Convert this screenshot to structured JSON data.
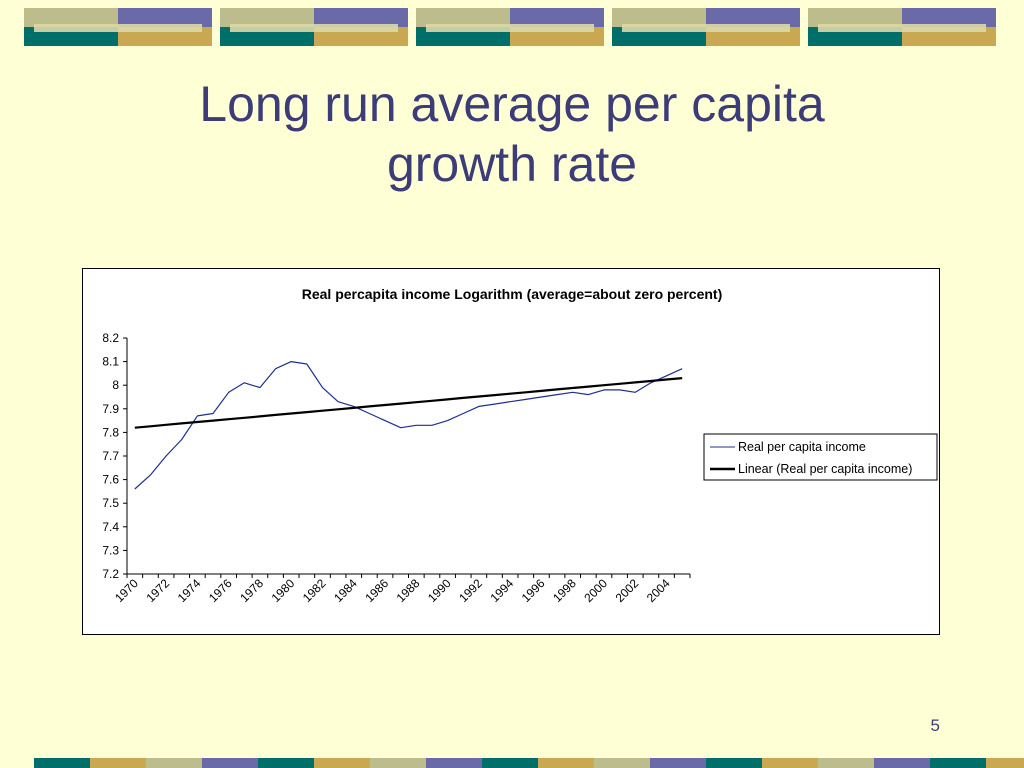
{
  "slide": {
    "title_line1": "Long run average per capita",
    "title_line2": "growth rate",
    "page_number": "5"
  },
  "colors": {
    "background": "#ffffd6",
    "title": "#3c3c78",
    "series_line": "#1f2f8f",
    "trend_line": "#000000",
    "deco_navy": "#6a6aa8",
    "deco_teal": "#006f6a",
    "deco_gold": "#c8a850",
    "deco_olive": "#bcbc8c",
    "deco_light": "#dcd8a8"
  },
  "chart_data": {
    "type": "line",
    "title": "Real percapita income Logarithm (average=about zero percent)",
    "xlabel": "",
    "ylabel": "",
    "ylim": [
      7.2,
      8.2
    ],
    "yticks": [
      "7.2",
      "7.3",
      "7.4",
      "7.5",
      "7.6",
      "7.7",
      "7.8",
      "7.9",
      "8",
      "8.1",
      "8.2"
    ],
    "x": [
      1970,
      1971,
      1972,
      1973,
      1974,
      1975,
      1976,
      1977,
      1978,
      1979,
      1980,
      1981,
      1982,
      1983,
      1984,
      1985,
      1986,
      1987,
      1988,
      1989,
      1990,
      1991,
      1992,
      1993,
      1994,
      1995,
      1996,
      1997,
      1998,
      1999,
      2000,
      2001,
      2002,
      2003,
      2004,
      2005
    ],
    "xticks": [
      "1970",
      "1972",
      "1974",
      "1976",
      "1978",
      "1980",
      "1982",
      "1984",
      "1986",
      "1988",
      "1990",
      "1992",
      "1994",
      "1996",
      "1998",
      "2000",
      "2002",
      "2004"
    ],
    "series": [
      {
        "name": "Real per capita income",
        "values": [
          7.56,
          7.62,
          7.7,
          7.77,
          7.87,
          7.88,
          7.97,
          8.01,
          7.99,
          8.07,
          8.1,
          8.09,
          7.99,
          7.93,
          7.91,
          7.88,
          7.85,
          7.82,
          7.83,
          7.83,
          7.85,
          7.88,
          7.91,
          7.92,
          7.93,
          7.94,
          7.95,
          7.96,
          7.97,
          7.96,
          7.98,
          7.98,
          7.97,
          8.01,
          8.04,
          8.07
        ]
      },
      {
        "name": "Linear (Real per capita income)",
        "values": [
          7.82,
          7.826,
          7.832,
          7.838,
          7.844,
          7.85,
          7.856,
          7.862,
          7.868,
          7.874,
          7.88,
          7.886,
          7.892,
          7.898,
          7.904,
          7.91,
          7.916,
          7.922,
          7.928,
          7.934,
          7.94,
          7.946,
          7.952,
          7.958,
          7.964,
          7.97,
          7.976,
          7.982,
          7.988,
          7.994,
          8.0,
          8.006,
          8.012,
          8.018,
          8.024,
          8.03
        ]
      }
    ],
    "legend": "right"
  }
}
